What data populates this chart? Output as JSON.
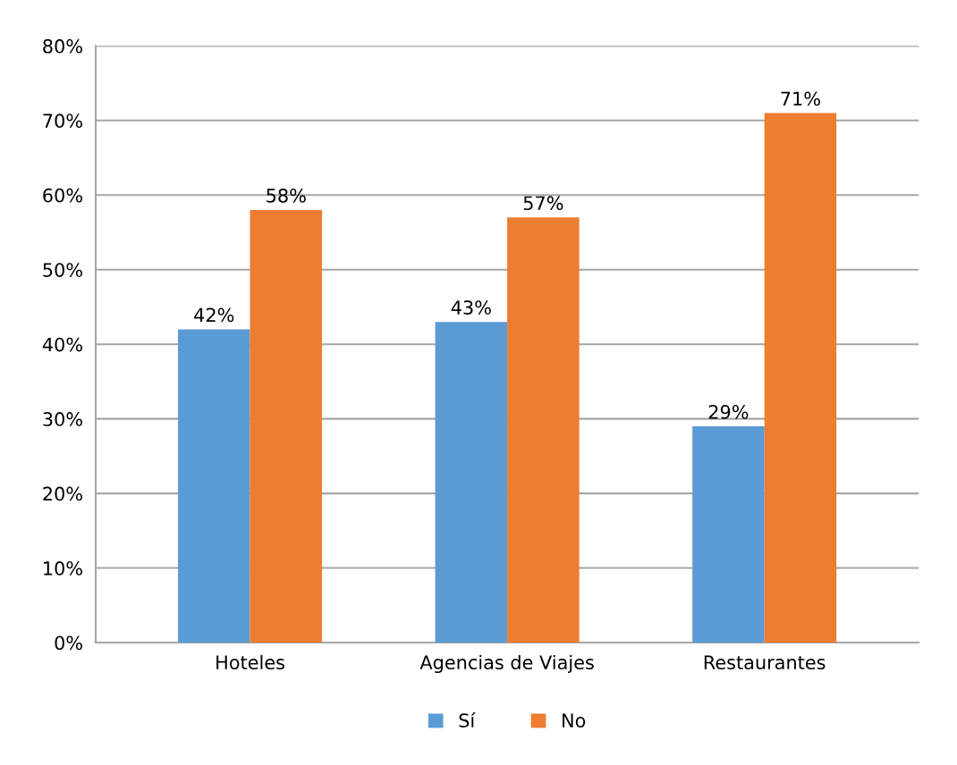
{
  "chart_data": {
    "type": "bar",
    "categories": [
      "Hoteles",
      "Agencias de Viajes",
      "Restaurantes"
    ],
    "series": [
      {
        "name": "Sí",
        "color": "#5b9bd5",
        "values": [
          42,
          43,
          29
        ],
        "value_labels": [
          "42%",
          "43%",
          "29%"
        ]
      },
      {
        "name": "No",
        "color": "#ed7d31",
        "values": [
          58,
          57,
          71
        ],
        "value_labels": [
          "58%",
          "57%",
          "71%"
        ]
      }
    ],
    "ylim": [
      0,
      80
    ],
    "yticks": [
      {
        "value": 0,
        "label": "0%"
      },
      {
        "value": 10,
        "label": "10%"
      },
      {
        "value": 20,
        "label": "20%"
      },
      {
        "value": 30,
        "label": "30%"
      },
      {
        "value": 40,
        "label": "40%"
      },
      {
        "value": 50,
        "label": "50%"
      },
      {
        "value": 60,
        "label": "60%"
      },
      {
        "value": 70,
        "label": "70%"
      },
      {
        "value": 80,
        "label": "80%"
      }
    ],
    "grid": "y",
    "legend": "bottom"
  }
}
